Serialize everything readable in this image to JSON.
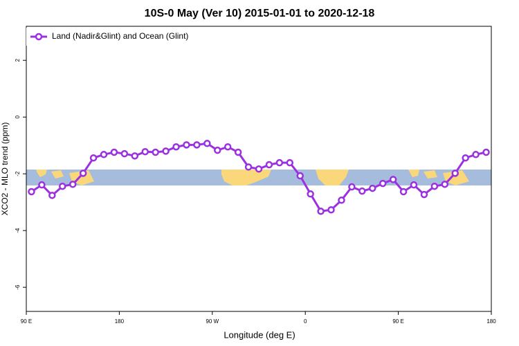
{
  "chart_data": {
    "type": "line",
    "title": "10S-0 May (Ver 10)   2015-01-01 to 2020-12-18",
    "x_label": "Longitude (deg E)",
    "y_label": "XCO2 - MLO trend (ppm)",
    "x": [
      95,
      105,
      115,
      125,
      135,
      145,
      155,
      165,
      175,
      185,
      195,
      205,
      215,
      225,
      235,
      245,
      255,
      265,
      275,
      285,
      295,
      305,
      315,
      325,
      335,
      345,
      355,
      365,
      375,
      385,
      395,
      405,
      415,
      425,
      435,
      445,
      455,
      465,
      475,
      485,
      495,
      505,
      515,
      525,
      535
    ],
    "series": [
      {
        "name": "Land (Nadir&Glint) and Ocean (Glint)",
        "color": "#9b30e0",
        "values": [
          -2.63,
          -2.39,
          -2.76,
          -2.44,
          -2.37,
          -1.98,
          -1.44,
          -1.32,
          -1.24,
          -1.29,
          -1.37,
          -1.22,
          -1.24,
          -1.2,
          -1.05,
          -0.98,
          -0.98,
          -0.93,
          -1.17,
          -1.05,
          -1.24,
          -1.76,
          -1.83,
          -1.68,
          -1.61,
          -1.61,
          -2.07,
          -2.71,
          -3.32,
          -3.27,
          -2.93,
          -2.46,
          -2.61,
          -2.51,
          -2.34,
          -2.2,
          -2.63,
          -2.39,
          -2.73,
          -2.44,
          -2.37,
          -1.98,
          -1.44,
          -1.32,
          -1.24
        ]
      }
    ],
    "xlim": [
      90,
      540
    ],
    "xticks": [
      {
        "value": 90,
        "label": "90 E"
      },
      180,
      {
        "value": 270,
        "label": "90 W"
      },
      {
        "value": 360,
        "label": "0"
      },
      {
        "value": 450,
        "label": "90 E"
      },
      {
        "value": 540,
        "label": "180"
      }
    ],
    "ylim": [
      -6.85,
      3.2
    ],
    "yticks": [
      -6,
      -4,
      -2,
      0,
      2
    ],
    "legend": "top-left"
  }
}
